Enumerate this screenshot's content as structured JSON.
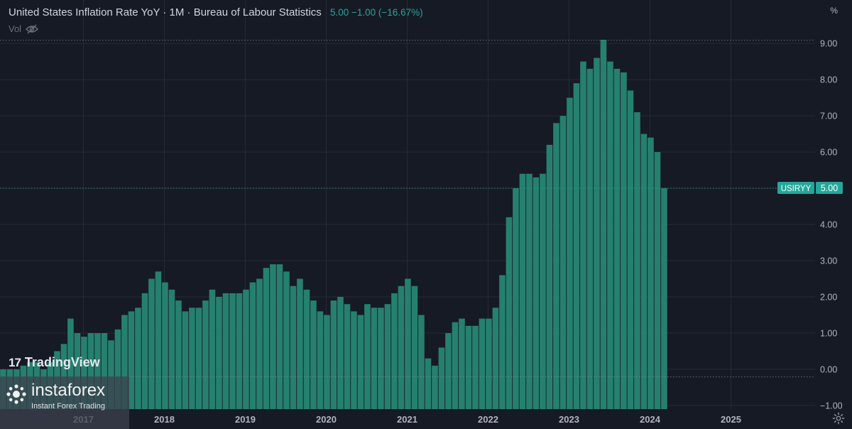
{
  "header": {
    "title": "United States Inflation Rate YoY · 1M · Bureau of Labour Statistics",
    "values": "5.00 −1.00 (−16.67%)",
    "vol_label": "Vol",
    "unit": "%"
  },
  "price_tag": {
    "symbol": "USIRYY",
    "value": "5.00"
  },
  "watermark": {
    "platform": "TradingView",
    "brand": "instaforex",
    "tagline": "Instant Forex Trading"
  },
  "colors": {
    "background": "#161a25",
    "bar": "#26806f",
    "accent": "#26a69a",
    "grid": "#242a37"
  },
  "chart_data": {
    "type": "bar",
    "x_start": "2016-01",
    "interval": "1M",
    "x_ticks": [
      "2017",
      "2018",
      "2019",
      "2020",
      "2021",
      "2022",
      "2023",
      "2024",
      "2025"
    ],
    "y_ticks": [
      "9.00",
      "8.00",
      "7.00",
      "6.00",
      "5.00",
      "4.00",
      "3.00",
      "2.00",
      "1.00",
      "0.00",
      "−1.00"
    ],
    "ylim": [
      -1.1,
      10.2
    ],
    "grid": true,
    "values": [
      -0.1,
      -0.2,
      0.0,
      0.1,
      0.2,
      0.2,
      0.0,
      0.2,
      0.5,
      0.7,
      1.4,
      1.0,
      0.9,
      1.0,
      1.0,
      1.0,
      0.8,
      1.1,
      1.5,
      1.6,
      1.7,
      2.1,
      2.5,
      2.7,
      2.4,
      2.2,
      1.9,
      1.6,
      1.7,
      1.7,
      1.9,
      2.2,
      2.0,
      2.1,
      2.1,
      2.1,
      2.2,
      2.4,
      2.5,
      2.8,
      2.9,
      2.9,
      2.7,
      2.3,
      2.5,
      2.2,
      1.9,
      1.6,
      1.5,
      1.9,
      2.0,
      1.8,
      1.6,
      1.5,
      1.8,
      1.7,
      1.7,
      1.8,
      2.1,
      2.3,
      2.5,
      2.3,
      1.5,
      0.3,
      0.1,
      0.6,
      1.0,
      1.3,
      1.4,
      1.2,
      1.2,
      1.4,
      1.4,
      1.7,
      2.6,
      4.2,
      5.0,
      5.4,
      5.4,
      5.3,
      5.4,
      6.2,
      6.8,
      7.0,
      7.5,
      7.9,
      8.5,
      8.3,
      8.6,
      9.1,
      8.5,
      8.3,
      8.2,
      7.7,
      7.1,
      6.5,
      6.4,
      6.0,
      5.0
    ],
    "last_value": 5.0
  }
}
